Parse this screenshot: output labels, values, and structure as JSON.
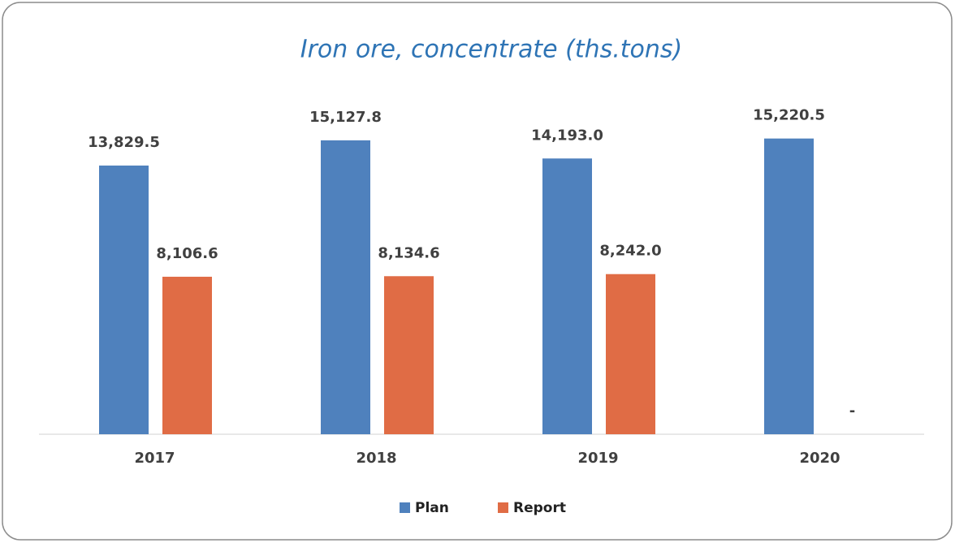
{
  "chart_data": {
    "type": "bar",
    "title": "Iron ore, concentrate (ths.tons)",
    "categories": [
      "2017",
      "2018",
      "2019",
      "2020"
    ],
    "series": [
      {
        "name": "Plan",
        "color": "#4f81bd",
        "values": [
          13829.5,
          15127.8,
          14193.0,
          15220.5
        ],
        "value_labels": [
          "13,829.5",
          "15,127.8",
          "14,193.0",
          "15,220.5"
        ]
      },
      {
        "name": "Report",
        "color": "#e06c45",
        "values": [
          8106.6,
          8134.6,
          8242.0,
          0
        ],
        "value_labels": [
          "8,106.6",
          "8,134.6",
          "8,242.0",
          "-"
        ]
      }
    ],
    "ylim": [
      0,
      16000
    ],
    "legend": "bottom"
  }
}
